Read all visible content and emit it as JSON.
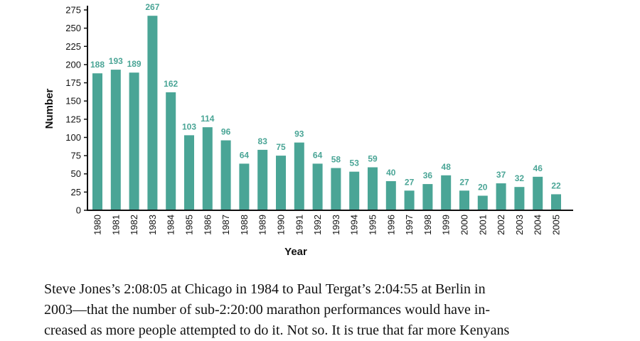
{
  "chart_data": {
    "type": "bar",
    "title": "",
    "xlabel": "Year",
    "ylabel": "Number",
    "categories": [
      "1980",
      "1981",
      "1982",
      "1983",
      "1984",
      "1985",
      "1986",
      "1987",
      "1988",
      "1989",
      "1990",
      "1991",
      "1992",
      "1993",
      "1994",
      "1995",
      "1996",
      "1997",
      "1998",
      "1999",
      "2000",
      "2001",
      "2002",
      "2003",
      "2004",
      "2005"
    ],
    "values": [
      188,
      193,
      189,
      267,
      162,
      103,
      114,
      96,
      64,
      83,
      75,
      93,
      64,
      58,
      53,
      59,
      40,
      27,
      36,
      48,
      27,
      20,
      37,
      32,
      46,
      22
    ],
    "yticks": [
      0,
      25,
      50,
      75,
      100,
      125,
      150,
      175,
      200,
      225,
      250,
      275
    ],
    "ylim": [
      0,
      275
    ],
    "grid": false,
    "legend": "none",
    "bar_color": "#4aa596",
    "label_color": "#4aa596"
  },
  "text": {
    "line1": "Steve Jones’s 2:08:05 at Chicago in 1984 to Paul Tergat’s 2:04:55 at Berlin in",
    "line2": "2003—that the number of sub-2:20:00 marathon performances would have in-",
    "line3": "creased as more people attempted to do it. Not so. It is true that far more Kenyans"
  }
}
